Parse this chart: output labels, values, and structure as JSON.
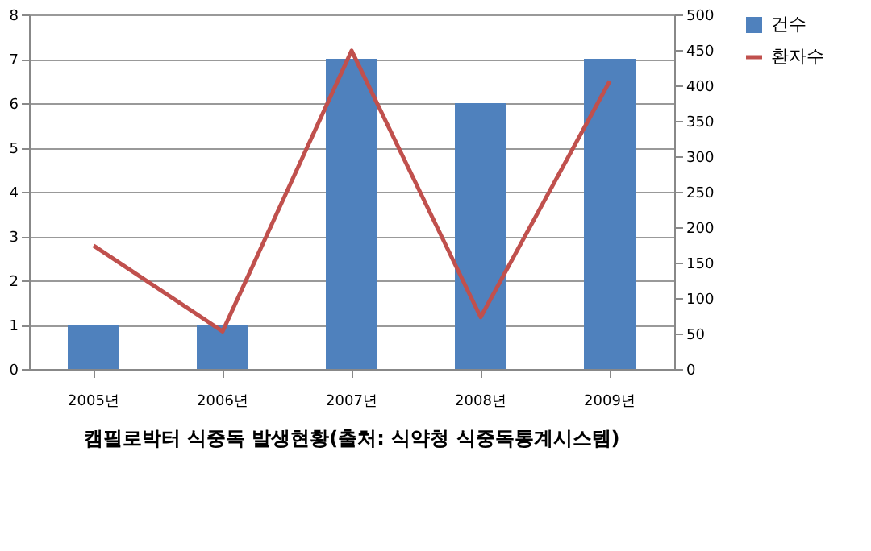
{
  "chart_data": {
    "type": "bar",
    "title": "캠필로박터 식중독 발생현황(출처: 식약청 식중독통계시스템)",
    "categories": [
      "2005년",
      "2006년",
      "2007년",
      "2008년",
      "2009년"
    ],
    "series": [
      {
        "name": "건수",
        "color": "#4f81bd",
        "values": [
          1,
          1,
          7,
          6,
          7
        ]
      },
      {
        "name": "환자수",
        "type": "line",
        "axis": "y2",
        "color": "#c0504d",
        "values": [
          174,
          53,
          449,
          73,
          406
        ]
      }
    ],
    "ylim": [
      0,
      8
    ],
    "yticks": [
      0,
      1,
      2,
      3,
      4,
      5,
      6,
      7,
      8
    ],
    "y2lim": [
      0,
      500
    ],
    "y2ticks": [
      0,
      50,
      100,
      150,
      200,
      250,
      300,
      350,
      400,
      450,
      500
    ],
    "grid": "y",
    "legend": "right",
    "marker": "none",
    "line_style": "solid"
  }
}
